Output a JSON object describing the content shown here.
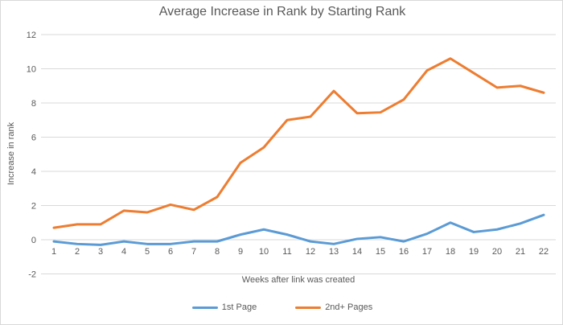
{
  "chart": {
    "border_color": "#d9d9d9",
    "background": "#ffffff",
    "gridline_color": "#d9d9d9",
    "text_color": "#595959"
  },
  "chart_data": {
    "type": "line",
    "title": "Average Increase in Rank by Starting Rank",
    "xlabel": "Weeks after link was created",
    "ylabel": "Increase in rank",
    "x": [
      1,
      2,
      3,
      4,
      5,
      6,
      7,
      8,
      9,
      10,
      11,
      12,
      13,
      14,
      15,
      16,
      17,
      18,
      19,
      20,
      21,
      22
    ],
    "series": [
      {
        "name": "1st Page",
        "color": "#5B9BD5",
        "values": [
          -0.1,
          -0.25,
          -0.3,
          -0.1,
          -0.25,
          -0.25,
          -0.1,
          -0.1,
          0.3,
          0.6,
          0.3,
          -0.1,
          -0.25,
          0.05,
          0.15,
          -0.1,
          0.35,
          1.0,
          0.45,
          0.6,
          0.95,
          1.45
        ]
      },
      {
        "name": "2nd+ Pages",
        "color": "#ED7D31",
        "values": [
          0.7,
          0.9,
          0.9,
          1.7,
          1.6,
          2.05,
          1.75,
          2.5,
          4.5,
          5.4,
          7.0,
          7.2,
          8.7,
          7.4,
          7.45,
          8.2,
          9.9,
          10.6,
          9.75,
          8.9,
          9.0,
          8.6
        ]
      }
    ],
    "ylim": [
      -2,
      12
    ],
    "yticks": [
      -2,
      0,
      2,
      4,
      6,
      8,
      10,
      12
    ],
    "grid": true,
    "legend_position": "bottom"
  }
}
